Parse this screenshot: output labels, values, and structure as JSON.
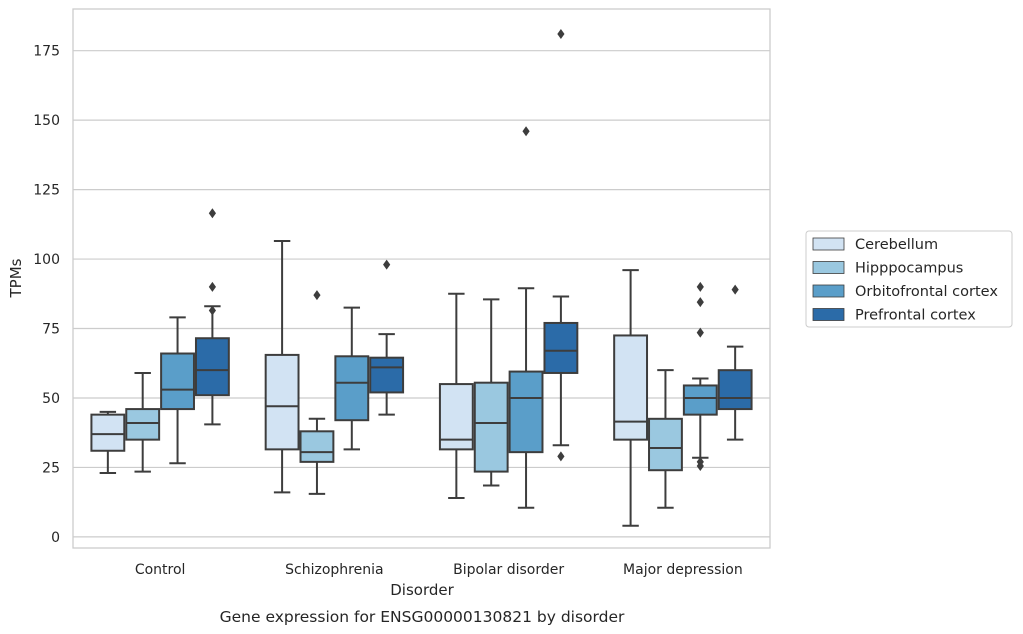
{
  "chart_data": {
    "type": "box",
    "caption": "Gene expression for ENSG00000130821 by disorder",
    "xlabel": "Disorder",
    "ylabel": "TPMs",
    "ylim": [
      -4,
      190
    ],
    "yticks": [
      0,
      25,
      50,
      75,
      100,
      125,
      150,
      175
    ],
    "grid": "horizontal",
    "legend_position": "right",
    "categories": [
      "Control",
      "Schizophrenia",
      "Bipolar disorder",
      "Major depression"
    ],
    "series": [
      {
        "name": "Cerebellum",
        "color": "#d2e3f3",
        "boxes": [
          {
            "whislo": 23,
            "q1": 31,
            "med": 37,
            "q3": 44,
            "whishi": 45,
            "fliers": []
          },
          {
            "whislo": 16,
            "q1": 31.5,
            "med": 47,
            "q3": 65.5,
            "whishi": 106.5,
            "fliers": []
          },
          {
            "whislo": 14,
            "q1": 31.5,
            "med": 35,
            "q3": 55,
            "whishi": 87.5,
            "fliers": []
          },
          {
            "whislo": 4,
            "q1": 35,
            "med": 41.5,
            "q3": 72.5,
            "whishi": 96,
            "fliers": []
          }
        ]
      },
      {
        "name": "Hipppocampus",
        "color": "#9ac8e0",
        "boxes": [
          {
            "whislo": 23.5,
            "q1": 35,
            "med": 41,
            "q3": 46,
            "whishi": 59,
            "fliers": []
          },
          {
            "whislo": 15.5,
            "q1": 27,
            "med": 30.5,
            "q3": 38,
            "whishi": 42.5,
            "fliers": [
              87
            ]
          },
          {
            "whislo": 18.5,
            "q1": 23.5,
            "med": 41,
            "q3": 55.5,
            "whishi": 85.5,
            "fliers": []
          },
          {
            "whislo": 10.5,
            "q1": 24,
            "med": 32,
            "q3": 42.5,
            "whishi": 60,
            "fliers": []
          }
        ]
      },
      {
        "name": "Orbitofrontal cortex",
        "color": "#5a9ec9",
        "boxes": [
          {
            "whislo": 26.5,
            "q1": 46,
            "med": 53,
            "q3": 66,
            "whishi": 79,
            "fliers": []
          },
          {
            "whislo": 31.5,
            "q1": 42,
            "med": 55.5,
            "q3": 65,
            "whishi": 82.5,
            "fliers": []
          },
          {
            "whislo": 10.5,
            "q1": 30.5,
            "med": 50,
            "q3": 59.5,
            "whishi": 89.5,
            "fliers": [
              146
            ]
          },
          {
            "whislo": 28.5,
            "q1": 44,
            "med": 50,
            "q3": 54.5,
            "whishi": 57,
            "fliers": [
              25.5,
              27,
              73.5,
              84.5,
              90
            ]
          }
        ]
      },
      {
        "name": "Prefrontal cortex",
        "color": "#2b6ba8",
        "boxes": [
          {
            "whislo": 40.5,
            "q1": 51,
            "med": 60,
            "q3": 71.5,
            "whishi": 83,
            "fliers": [
              90,
              81.5,
              116.5
            ]
          },
          {
            "whislo": 44,
            "q1": 52,
            "med": 61,
            "q3": 64.5,
            "whishi": 73,
            "fliers": [
              98
            ]
          },
          {
            "whislo": 33,
            "q1": 59,
            "med": 67,
            "q3": 77,
            "whishi": 86.5,
            "fliers": [
              29,
              181
            ]
          },
          {
            "whislo": 35,
            "q1": 46,
            "med": 50,
            "q3": 60,
            "whishi": 68.5,
            "fliers": [
              89
            ]
          }
        ]
      }
    ]
  }
}
